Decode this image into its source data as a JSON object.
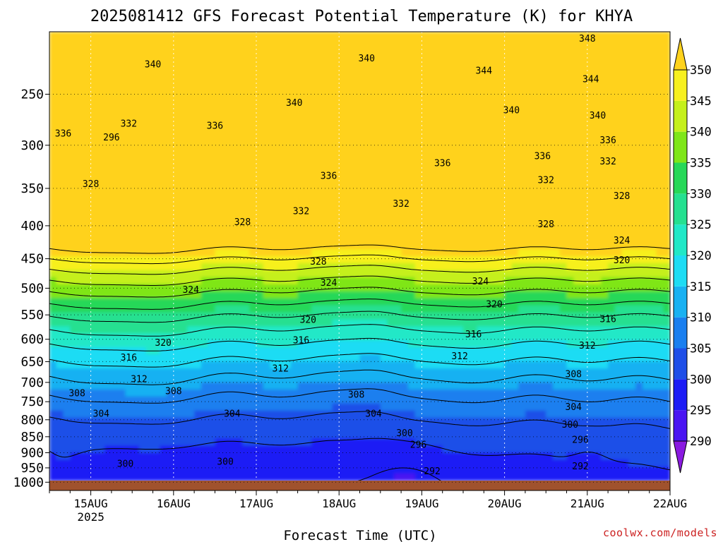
{
  "chart_data": {
    "type": "heatmap",
    "title": "2025081412 GFS Forecast Potential Temperature (K) for KHYA",
    "xlabel": "Forecast Time (UTC)",
    "ylabel": "",
    "x_ticks": [
      "15AUG",
      "16AUG",
      "17AUG",
      "18AUG",
      "19AUG",
      "20AUG",
      "21AUG",
      "22AUG"
    ],
    "x_tick_sub": {
      "15AUG": "2025"
    },
    "xlim": [
      "2025-08-14T12",
      "2025-08-22T00"
    ],
    "y_axis": {
      "scale": "log",
      "inverted": true,
      "unit": "hPa",
      "ylim": [
        1030,
        200
      ]
    },
    "y_ticks": [
      250,
      300,
      350,
      400,
      450,
      500,
      550,
      600,
      650,
      700,
      750,
      800,
      850,
      900,
      950,
      1000
    ],
    "grid": true,
    "colorbar": {
      "ticks": [
        290,
        295,
        300,
        305,
        310,
        315,
        320,
        325,
        330,
        335,
        340,
        345,
        350
      ],
      "colors": [
        "#8a1ae0",
        "#4a14f2",
        "#1c1cf5",
        "#1f4fe8",
        "#1a7fef",
        "#19b1f2",
        "#1edcf4",
        "#21e8c7",
        "#25e090",
        "#27d858",
        "#7fe619",
        "#c5f01b",
        "#f7f01f",
        "#ffd21c"
      ],
      "extend": "both",
      "placement": "right"
    },
    "contour_interval": 4,
    "contour_labels": [
      {
        "x": "2025-08-15T06",
        "p": 292,
        "value": 296
      },
      {
        "x": "2025-08-19T03",
        "p": 962,
        "value": 292
      },
      {
        "x": "2025-08-20T22",
        "p": 945,
        "value": 292
      },
      {
        "x": "2025-08-15T10",
        "p": 937,
        "value": 300
      },
      {
        "x": "2025-08-16T15",
        "p": 930,
        "value": 300
      },
      {
        "x": "2025-08-18T23",
        "p": 875,
        "value": 296
      },
      {
        "x": "2025-08-20T22",
        "p": 860,
        "value": 296
      },
      {
        "x": "2025-08-18T19",
        "p": 840,
        "value": 300
      },
      {
        "x": "2025-08-20T19",
        "p": 815,
        "value": 300
      },
      {
        "x": "2025-08-15T03",
        "p": 783,
        "value": 304
      },
      {
        "x": "2025-08-16T17",
        "p": 783,
        "value": 304
      },
      {
        "x": "2025-08-18T10",
        "p": 783,
        "value": 304
      },
      {
        "x": "2025-08-20T20",
        "p": 765,
        "value": 304
      },
      {
        "x": "2025-08-14T20",
        "p": 728,
        "value": 308
      },
      {
        "x": "2025-08-16T00",
        "p": 723,
        "value": 308
      },
      {
        "x": "2025-08-18T05",
        "p": 732,
        "value": 308
      },
      {
        "x": "2025-08-20T20",
        "p": 680,
        "value": 308
      },
      {
        "x": "2025-08-15T14",
        "p": 692,
        "value": 312
      },
      {
        "x": "2025-08-17T07",
        "p": 667,
        "value": 312
      },
      {
        "x": "2025-08-19T11",
        "p": 638,
        "value": 312
      },
      {
        "x": "2025-08-21T00",
        "p": 614,
        "value": 312
      },
      {
        "x": "2025-08-15T11",
        "p": 641,
        "value": 316
      },
      {
        "x": "2025-08-17T13",
        "p": 603,
        "value": 316
      },
      {
        "x": "2025-08-19T15",
        "p": 590,
        "value": 316
      },
      {
        "x": "2025-08-21T06",
        "p": 559,
        "value": 316
      },
      {
        "x": "2025-08-15T21",
        "p": 608,
        "value": 320
      },
      {
        "x": "2025-08-17T15",
        "p": 560,
        "value": 320
      },
      {
        "x": "2025-08-19T21",
        "p": 530,
        "value": 320
      },
      {
        "x": "2025-08-21T10",
        "p": 453,
        "value": 320
      },
      {
        "x": "2025-08-16T05",
        "p": 503,
        "value": 324
      },
      {
        "x": "2025-08-17T21",
        "p": 491,
        "value": 324
      },
      {
        "x": "2025-08-19T17",
        "p": 488,
        "value": 324
      },
      {
        "x": "2025-08-21T10",
        "p": 422,
        "value": 324
      },
      {
        "x": "2025-08-17T18",
        "p": 455,
        "value": 328
      },
      {
        "x": "2025-08-15T00",
        "p": 345,
        "value": 328
      },
      {
        "x": "2025-08-16T20",
        "p": 395,
        "value": 328
      },
      {
        "x": "2025-08-20T12",
        "p": 398,
        "value": 328
      },
      {
        "x": "2025-08-21T10",
        "p": 360,
        "value": 328
      },
      {
        "x": "2025-08-17T13",
        "p": 380,
        "value": 332
      },
      {
        "x": "2025-08-18T18",
        "p": 370,
        "value": 332
      },
      {
        "x": "2025-08-20T12",
        "p": 340,
        "value": 332
      },
      {
        "x": "2025-08-15T11",
        "p": 278,
        "value": 332
      },
      {
        "x": "2025-08-21T06",
        "p": 318,
        "value": 332
      },
      {
        "x": "2025-08-14T16",
        "p": 288,
        "value": 336
      },
      {
        "x": "2025-08-16T12",
        "p": 280,
        "value": 336
      },
      {
        "x": "2025-08-17T21",
        "p": 335,
        "value": 336
      },
      {
        "x": "2025-08-19T06",
        "p": 320,
        "value": 336
      },
      {
        "x": "2025-08-20T11",
        "p": 312,
        "value": 336
      },
      {
        "x": "2025-08-21T06",
        "p": 295,
        "value": 336
      },
      {
        "x": "2025-08-15T18",
        "p": 225,
        "value": 340
      },
      {
        "x": "2025-08-17T11",
        "p": 258,
        "value": 340
      },
      {
        "x": "2025-08-18T08",
        "p": 220,
        "value": 340
      },
      {
        "x": "2025-08-20T02",
        "p": 265,
        "value": 340
      },
      {
        "x": "2025-08-21T03",
        "p": 270,
        "value": 340
      },
      {
        "x": "2025-08-19T18",
        "p": 230,
        "value": 344
      },
      {
        "x": "2025-08-21T01",
        "p": 237,
        "value": 344
      },
      {
        "x": "2025-08-21T00",
        "p": 205,
        "value": 348
      }
    ]
  },
  "credit": "coolwx.com/models"
}
